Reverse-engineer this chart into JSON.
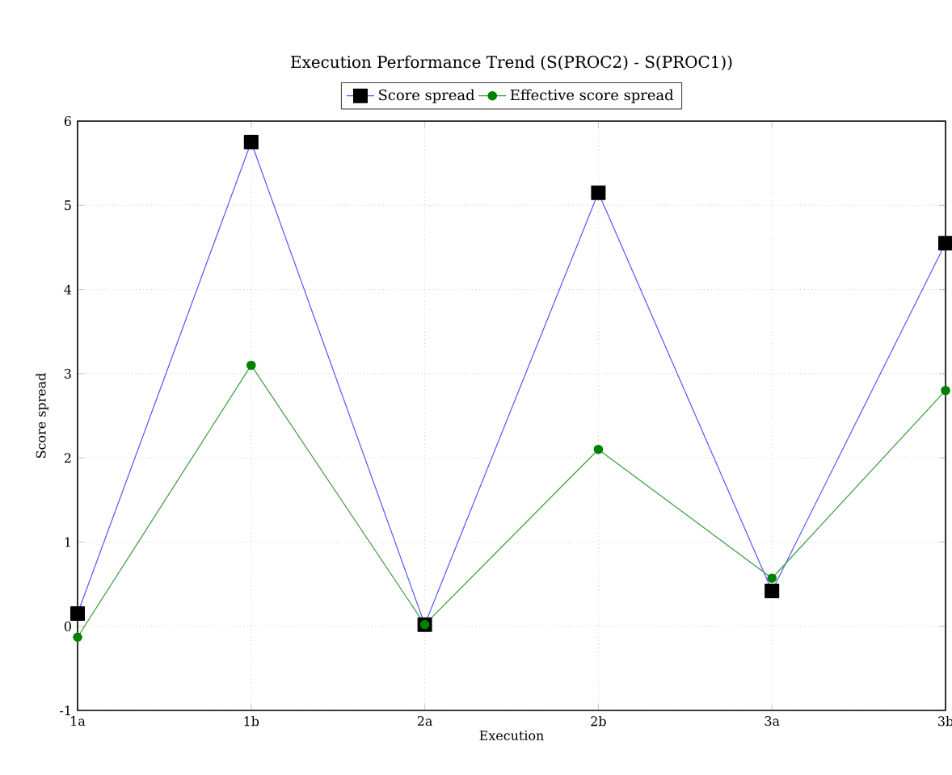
{
  "chart_data": {
    "type": "line",
    "title": "Execution Performance Trend (S(PROC2) - S(PROC1))",
    "xlabel": "Execution",
    "ylabel": "Score spread",
    "categories": [
      "1a",
      "1b",
      "2a",
      "2b",
      "3a",
      "3b"
    ],
    "series": [
      {
        "name": "Score spread",
        "color": "#5555ff",
        "marker": "square",
        "values": [
          0.15,
          5.75,
          0.02,
          5.15,
          0.42,
          4.55
        ]
      },
      {
        "name": "Effective score spread",
        "color": "#3c9a3c",
        "marker": "circle",
        "values": [
          -0.13,
          3.1,
          0.02,
          2.1,
          0.57,
          2.8
        ]
      }
    ],
    "ylim": [
      -1,
      6
    ],
    "yticks": [
      -1,
      0,
      1,
      2,
      3,
      4,
      5,
      6
    ],
    "grid": true,
    "legend": "top",
    "line_style": "solid"
  }
}
